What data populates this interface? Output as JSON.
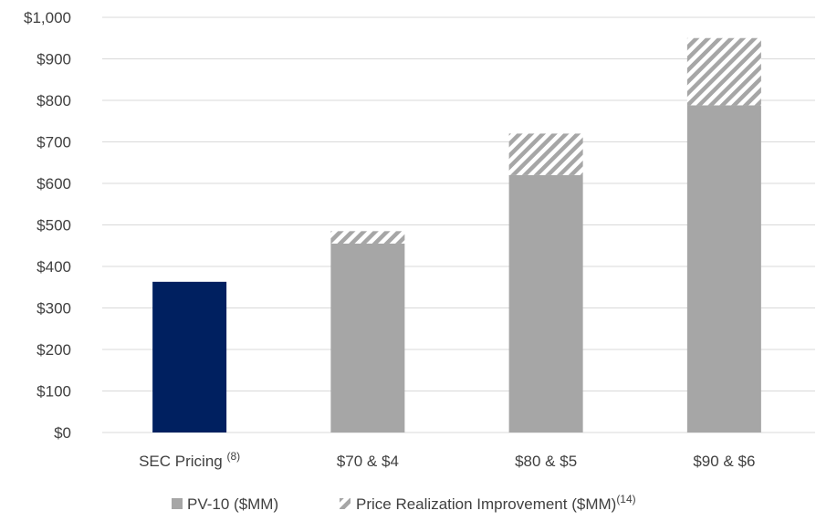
{
  "chart_data": {
    "type": "bar",
    "stacked": true,
    "title": "",
    "xlabel": "",
    "ylabel": "",
    "ylim": [
      0,
      1000
    ],
    "yticks": [
      0,
      100,
      200,
      300,
      400,
      500,
      600,
      700,
      800,
      900,
      1000
    ],
    "ytick_labels": [
      "$0",
      "$100",
      "$200",
      "$300",
      "$400",
      "$500",
      "$600",
      "$700",
      "$800",
      "$900",
      "$1,000"
    ],
    "grid": true,
    "legend_position": "bottom",
    "categories": [
      {
        "label": "SEC Pricing",
        "footnote": "(8)"
      },
      {
        "label": "$70 & $4",
        "footnote": ""
      },
      {
        "label": "$80 & $5",
        "footnote": ""
      },
      {
        "label": "$90 & $6",
        "footnote": ""
      }
    ],
    "sec_pricing_value": 363,
    "series": [
      {
        "name": "PV-10 ($MM)",
        "footnote": "",
        "values": [
          null,
          455,
          620,
          788
        ],
        "color": "#a6a6a6",
        "pattern": "solid"
      },
      {
        "name": "Price Realization Improvement ($MM)",
        "footnote": "(14)",
        "values": [
          null,
          30,
          100,
          162
        ],
        "color": "#a6a6a6",
        "pattern": "diagonal-hatch"
      }
    ],
    "colors": {
      "sec_bar": "#002060",
      "pv10": "#a6a6a6",
      "hatch": "#a6a6a6",
      "grid": "#d9d9d9",
      "text": "#404040"
    }
  }
}
